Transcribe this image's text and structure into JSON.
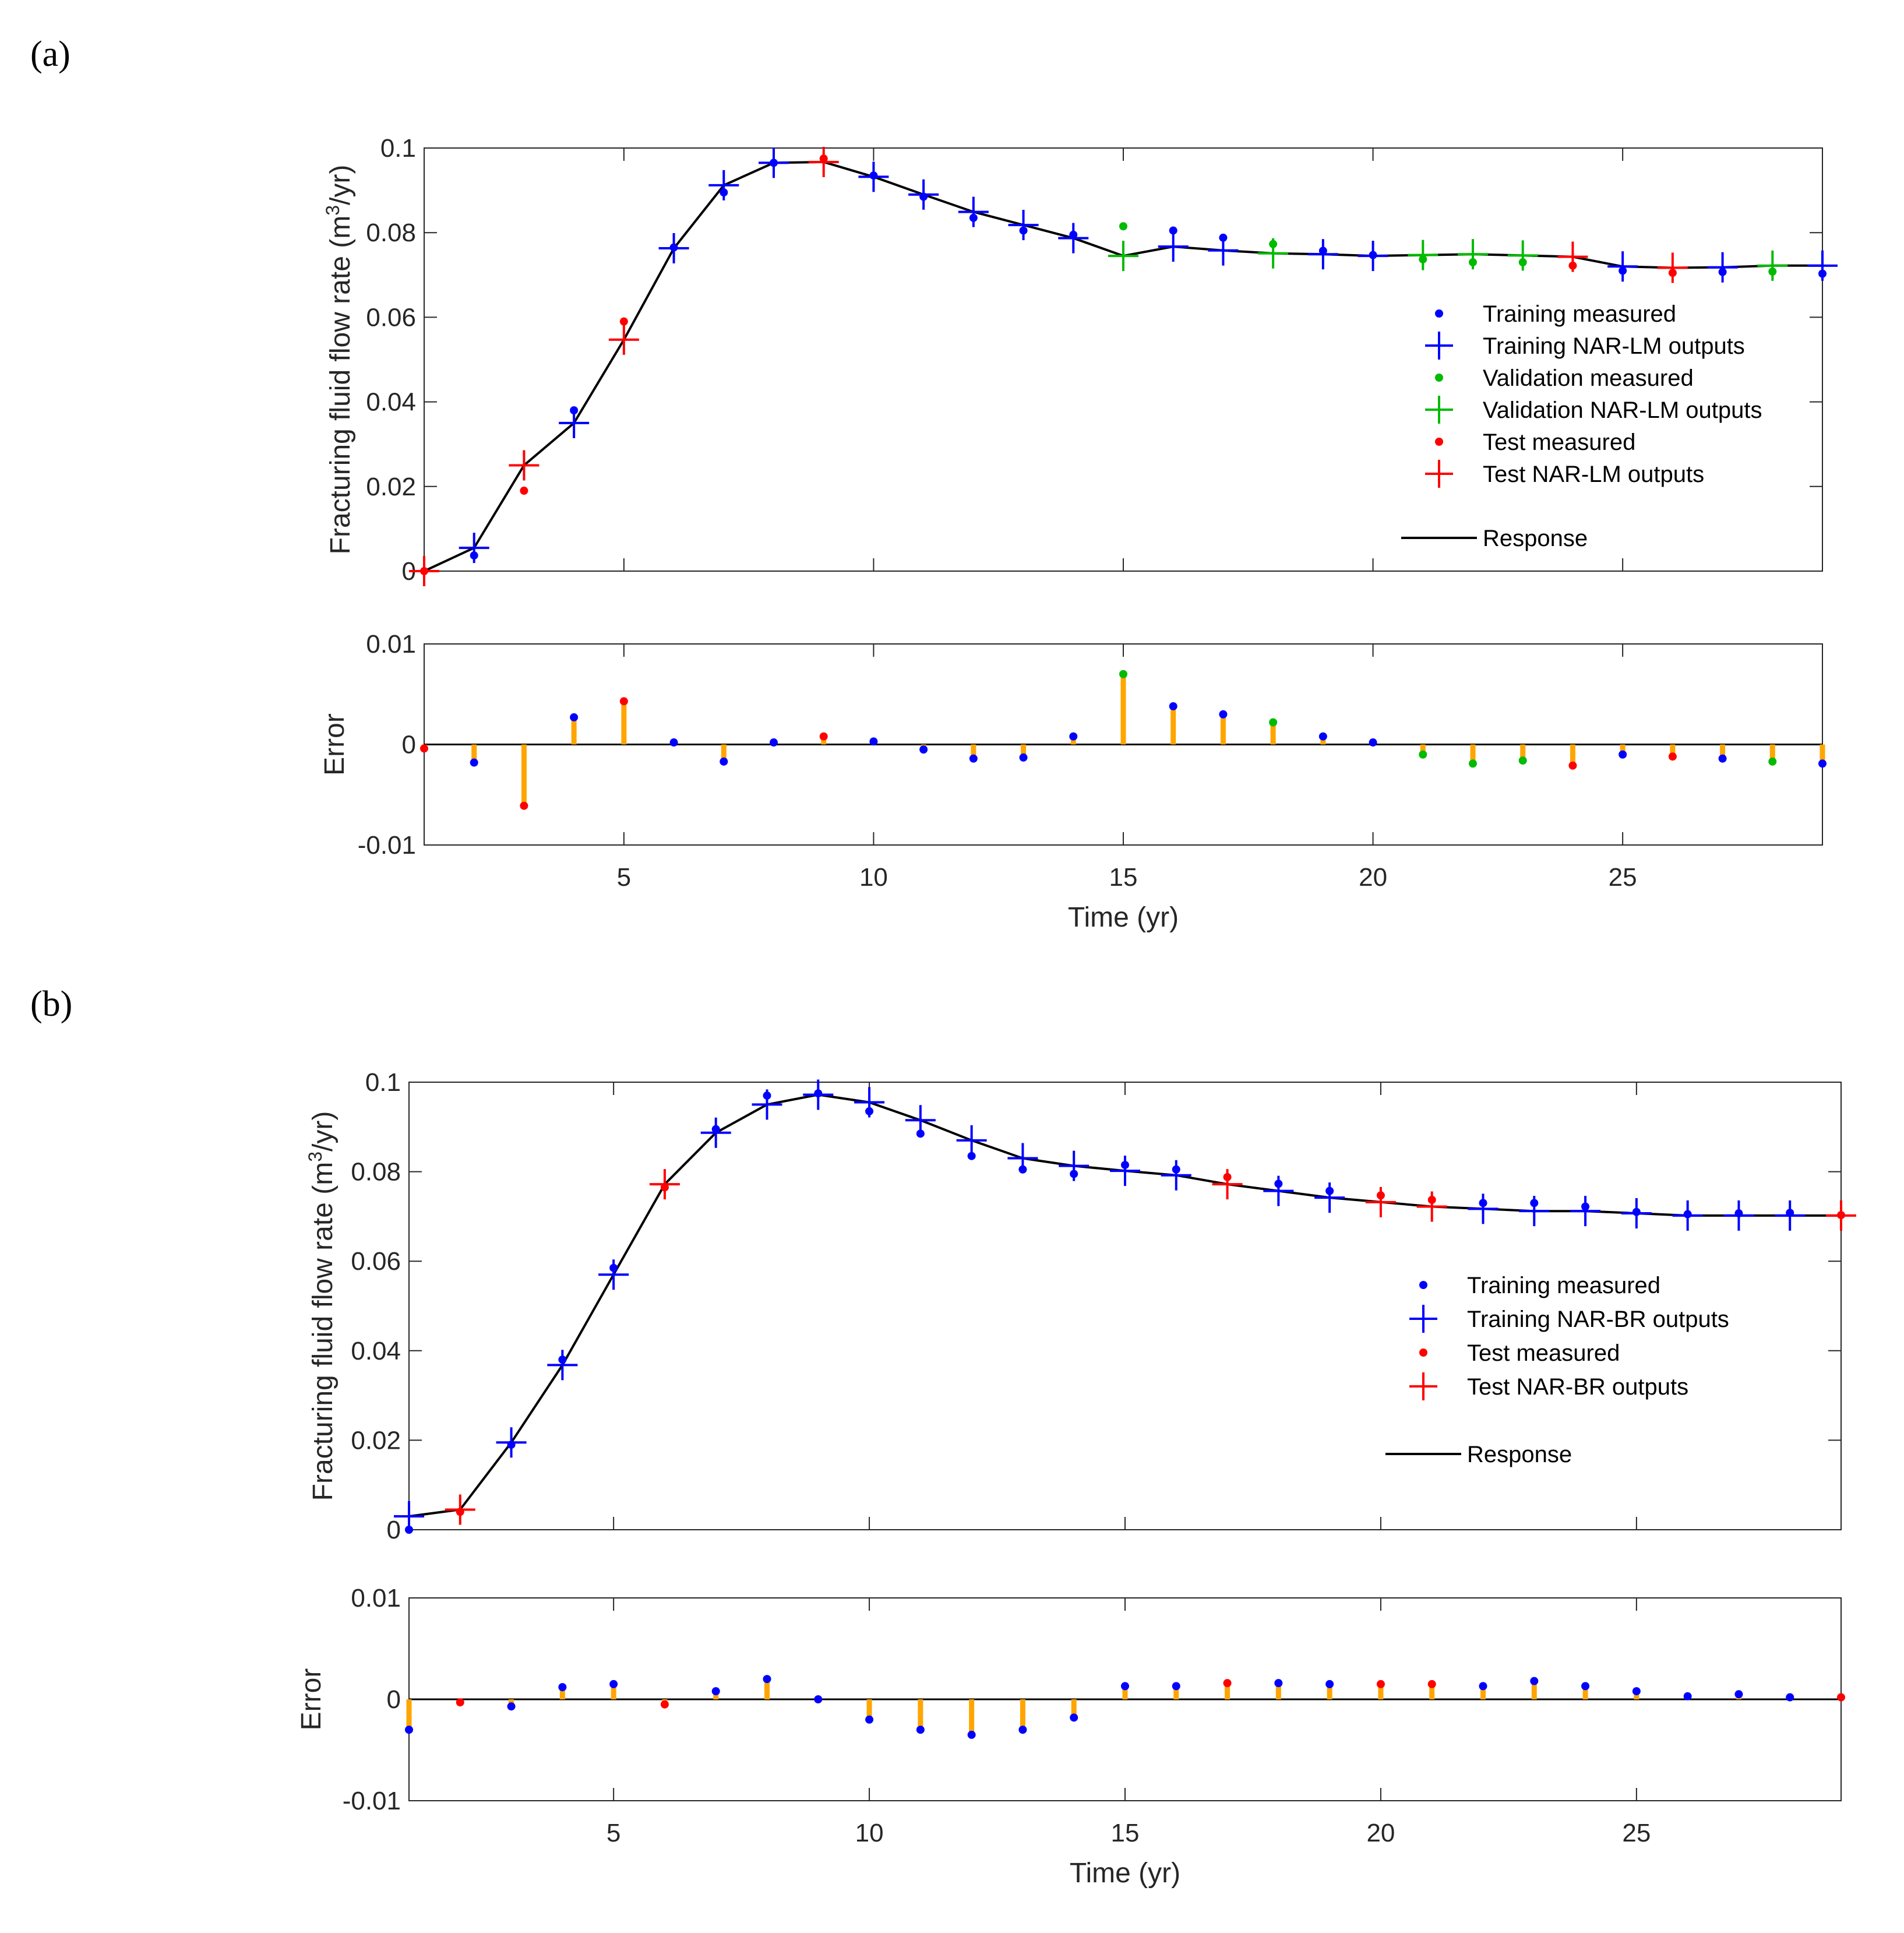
{
  "panels": {
    "a": {
      "label": "(a)"
    },
    "b": {
      "label": "(b)"
    }
  },
  "colors": {
    "training": "#0000ff",
    "validation": "#00bb00",
    "test": "#ff0000",
    "response": "#000000",
    "error_bar": "#ffa500",
    "axis": "#262626"
  },
  "chart_data": [
    {
      "id": "a-top",
      "type": "line",
      "panel": "(a)",
      "ylabel_main": "Fracturing fluid flow rate (m",
      "ylabel_sup": "3",
      "ylabel_end": "/yr)",
      "xlim": [
        1,
        29
      ],
      "ylim": [
        0,
        0.1
      ],
      "xticks": [
        5,
        10,
        15,
        20,
        25
      ],
      "yticks": [
        0,
        0.02,
        0.04,
        0.06,
        0.08,
        0.1
      ],
      "ytick_labels": [
        "0",
        "0.02",
        "0.04",
        "0.06",
        "0.08",
        "0.1"
      ],
      "grid": false,
      "legend_position": "right",
      "legend": [
        {
          "label": "Training measured",
          "marker": "dot",
          "set": "training"
        },
        {
          "label": "Training NAR-LM outputs",
          "marker": "plus",
          "set": "training"
        },
        {
          "label": "Validation measured",
          "marker": "dot",
          "set": "validation"
        },
        {
          "label": "Validation NAR-LM outputs",
          "marker": "plus",
          "set": "validation"
        },
        {
          "label": "Test measured",
          "marker": "dot",
          "set": "test"
        },
        {
          "label": "Test NAR-LM outputs",
          "marker": "plus",
          "set": "test"
        },
        {
          "label": "Response",
          "marker": "line",
          "set": "response"
        }
      ],
      "x": [
        1,
        2,
        3,
        4,
        5,
        6,
        7,
        8,
        9,
        10,
        11,
        12,
        13,
        14,
        15,
        16,
        17,
        18,
        19,
        20,
        21,
        22,
        23,
        24,
        25,
        26,
        27,
        28,
        29
      ],
      "sets": [
        "test",
        "training",
        "test",
        "training",
        "test",
        "training",
        "training",
        "training",
        "test",
        "training",
        "training",
        "training",
        "training",
        "training",
        "validation",
        "training",
        "training",
        "validation",
        "training",
        "training",
        "validation",
        "validation",
        "validation",
        "test",
        "training",
        "test",
        "training",
        "validation",
        "training"
      ],
      "measured": [
        0,
        0.0037,
        0.019,
        0.038,
        0.059,
        0.0765,
        0.0895,
        0.0965,
        0.0975,
        0.0935,
        0.0885,
        0.0835,
        0.0805,
        0.0795,
        0.0815,
        0.0805,
        0.0788,
        0.0773,
        0.0757,
        0.0747,
        0.0737,
        0.073,
        0.073,
        0.0722,
        0.071,
        0.0705,
        0.0707,
        0.0708,
        0.0703
      ],
      "outputs": [
        0,
        0.0055,
        0.025,
        0.035,
        0.0547,
        0.0763,
        0.0912,
        0.0965,
        0.0967,
        0.0932,
        0.089,
        0.0849,
        0.0818,
        0.0787,
        0.0745,
        0.0767,
        0.0758,
        0.0751,
        0.0749,
        0.0745,
        0.0747,
        0.0749,
        0.0746,
        0.0743,
        0.072,
        0.0717,
        0.0718,
        0.0722,
        0.0722
      ]
    },
    {
      "id": "a-err",
      "type": "bar",
      "panel": "(a)",
      "xlabel": "Time (yr)",
      "ylabel": "Error",
      "xlim": [
        1,
        29
      ],
      "ylim": [
        -0.01,
        0.01
      ],
      "xticks": [
        5,
        10,
        15,
        20,
        25
      ],
      "yticks": [
        -0.01,
        0,
        0.01
      ],
      "ytick_labels": [
        "-0.01",
        "0",
        "0.01"
      ],
      "x": [
        1,
        2,
        3,
        4,
        5,
        6,
        7,
        8,
        9,
        10,
        11,
        12,
        13,
        14,
        15,
        16,
        17,
        18,
        19,
        20,
        21,
        22,
        23,
        24,
        25,
        26,
        27,
        28,
        29
      ],
      "values": [
        -0.0004,
        -0.0018,
        -0.0061,
        0.0027,
        0.0043,
        0.0002,
        -0.0017,
        0.0002,
        0.0008,
        0.0003,
        -0.0005,
        -0.0014,
        -0.0013,
        0.0008,
        0.007,
        0.0038,
        0.003,
        0.0022,
        0.0008,
        0.0002,
        -0.001,
        -0.0019,
        -0.0016,
        -0.0021,
        -0.001,
        -0.0012,
        -0.0014,
        -0.0017,
        -0.0019
      ]
    },
    {
      "id": "b-top",
      "type": "line",
      "panel": "(b)",
      "ylabel_main": "Fracturing fluid flow rate (m",
      "ylabel_sup": "3",
      "ylabel_end": "/yr)",
      "xlim": [
        1,
        29
      ],
      "ylim": [
        0,
        0.1
      ],
      "xticks": [
        5,
        10,
        15,
        20,
        25
      ],
      "yticks": [
        0,
        0.02,
        0.04,
        0.06,
        0.08,
        0.1
      ],
      "ytick_labels": [
        "0",
        "0.02",
        "0.04",
        "0.06",
        "0.08",
        "0.1"
      ],
      "grid": false,
      "legend_position": "right",
      "legend": [
        {
          "label": "Training measured",
          "marker": "dot",
          "set": "training"
        },
        {
          "label": "Training NAR-BR outputs",
          "marker": "plus",
          "set": "training"
        },
        {
          "label": "Test measured",
          "marker": "dot",
          "set": "test"
        },
        {
          "label": "Test NAR-BR outputs",
          "marker": "plus",
          "set": "test"
        },
        {
          "label": "Response",
          "marker": "line",
          "set": "response"
        }
      ],
      "x": [
        1,
        2,
        3,
        4,
        5,
        6,
        7,
        8,
        9,
        10,
        11,
        12,
        13,
        14,
        15,
        16,
        17,
        18,
        19,
        20,
        21,
        22,
        23,
        24,
        25,
        26,
        27,
        28,
        29
      ],
      "sets": [
        "training",
        "test",
        "training",
        "training",
        "training",
        "test",
        "training",
        "training",
        "training",
        "training",
        "training",
        "training",
        "training",
        "training",
        "training",
        "training",
        "test",
        "training",
        "training",
        "test",
        "test",
        "training",
        "training",
        "training",
        "training",
        "training",
        "training",
        "training",
        "test"
      ],
      "measured": [
        0,
        0.004,
        0.019,
        0.038,
        0.0585,
        0.0765,
        0.0895,
        0.097,
        0.0975,
        0.0935,
        0.0885,
        0.0835,
        0.0805,
        0.0795,
        0.0815,
        0.0805,
        0.0788,
        0.0773,
        0.0757,
        0.0747,
        0.0737,
        0.073,
        0.073,
        0.0722,
        0.071,
        0.0705,
        0.0707,
        0.0708,
        0.0703
      ],
      "outputs": [
        0.003,
        0.0045,
        0.0195,
        0.0368,
        0.057,
        0.0772,
        0.0887,
        0.095,
        0.0972,
        0.0955,
        0.0915,
        0.087,
        0.083,
        0.0813,
        0.0802,
        0.0792,
        0.0772,
        0.0757,
        0.0742,
        0.0732,
        0.0722,
        0.0717,
        0.0712,
        0.0712,
        0.0707,
        0.0702,
        0.0702,
        0.0702,
        0.0702
      ]
    },
    {
      "id": "b-err",
      "type": "bar",
      "panel": "(b)",
      "xlabel": "Time (yr)",
      "ylabel": "Error",
      "xlim": [
        1,
        29
      ],
      "ylim": [
        -0.01,
        0.01
      ],
      "xticks": [
        5,
        10,
        15,
        20,
        25
      ],
      "yticks": [
        -0.01,
        0,
        0.01
      ],
      "ytick_labels": [
        "-0.01",
        "0",
        "0.01"
      ],
      "x": [
        1,
        2,
        3,
        4,
        5,
        6,
        7,
        8,
        9,
        10,
        11,
        12,
        13,
        14,
        15,
        16,
        17,
        18,
        19,
        20,
        21,
        22,
        23,
        24,
        25,
        26,
        27,
        28,
        29
      ],
      "values": [
        -0.003,
        -0.0003,
        -0.0007,
        0.0012,
        0.0015,
        -0.0005,
        0.0008,
        0.002,
        0,
        -0.002,
        -0.003,
        -0.0035,
        -0.003,
        -0.0018,
        0.0013,
        0.0013,
        0.0016,
        0.0016,
        0.0015,
        0.0015,
        0.0015,
        0.0013,
        0.0018,
        0.0013,
        0.0008,
        0.0003,
        0.0005,
        0.0002,
        0.0002
      ]
    }
  ]
}
